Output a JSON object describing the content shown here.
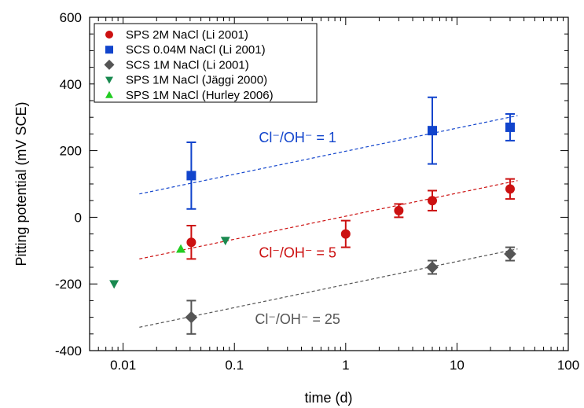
{
  "chart_data": {
    "type": "scatter",
    "xlabel": "time (d)",
    "ylabel": "Pitting potential (mV SCE)",
    "xscale": "log",
    "xlim": [
      0.005,
      100
    ],
    "ylim": [
      -400,
      600
    ],
    "x_ticks": [
      {
        "value": 0.01,
        "label": "0.01"
      },
      {
        "value": 0.1,
        "label": "0.1"
      },
      {
        "value": 1,
        "label": "1"
      },
      {
        "value": 10,
        "label": "10"
      },
      {
        "value": 100,
        "label": "100"
      }
    ],
    "y_ticks": [
      {
        "value": -400,
        "label": "-400"
      },
      {
        "value": -200,
        "label": "-200"
      },
      {
        "value": 0,
        "label": "0"
      },
      {
        "value": 200,
        "label": "200"
      },
      {
        "value": 400,
        "label": "400"
      },
      {
        "value": 600,
        "label": "600"
      }
    ],
    "grid": false,
    "legend_position": "top-left",
    "series": [
      {
        "name": "SPS 2M NaCl (Li 2001)",
        "marker": "circle",
        "color": "#cc1111",
        "points": [
          {
            "x": 0.041,
            "y": -75,
            "err": 50
          },
          {
            "x": 1,
            "y": -50,
            "err": 40
          },
          {
            "x": 3,
            "y": 20,
            "err": 20
          },
          {
            "x": 6,
            "y": 50,
            "err": 30
          },
          {
            "x": 30,
            "y": 85,
            "err": 30
          }
        ]
      },
      {
        "name": "SCS 0.04M NaCl (Li 2001)",
        "marker": "square",
        "color": "#1144cc",
        "points": [
          {
            "x": 0.041,
            "y": 125,
            "err": 100
          },
          {
            "x": 6,
            "y": 260,
            "err": 100
          },
          {
            "x": 30,
            "y": 270,
            "err": 40
          }
        ]
      },
      {
        "name": "SCS 1M NaCl (Li 2001)",
        "marker": "diamond",
        "color": "#555555",
        "points": [
          {
            "x": 0.041,
            "y": -300,
            "err": 50
          },
          {
            "x": 6,
            "y": -150,
            "err": 20
          },
          {
            "x": 30,
            "y": -110,
            "err": 20
          }
        ]
      },
      {
        "name": "SPS 1M NaCl (Jäggi 2000)",
        "marker": "triangle-down",
        "color": "#1a8a50",
        "points": [
          {
            "x": 0.0083,
            "y": -200
          },
          {
            "x": 0.083,
            "y": -70
          }
        ]
      },
      {
        "name": "SPS 1M NaCl (Hurley 2006)",
        "marker": "triangle-up",
        "color": "#22cc22",
        "points": [
          {
            "x": 0.033,
            "y": -95
          }
        ]
      }
    ],
    "trend_lines": [
      {
        "color": "#1144cc",
        "x": [
          0.014,
          35
        ],
        "y": [
          70,
          305
        ]
      },
      {
        "color": "#cc1111",
        "x": [
          0.014,
          35
        ],
        "y": [
          -125,
          110
        ]
      },
      {
        "color": "#555555",
        "x": [
          0.014,
          35
        ],
        "y": [
          -330,
          -95
        ]
      }
    ],
    "annotations": [
      {
        "text": "Cl⁻/OH⁻ = 1",
        "color": "#1144cc",
        "x": 0.37,
        "y": 225
      },
      {
        "text": "Cl⁻/OH⁻ = 5",
        "color": "#cc1111",
        "x": 0.37,
        "y": -120
      },
      {
        "text": "Cl⁻/OH⁻ = 25",
        "color": "#555555",
        "x": 0.37,
        "y": -320
      }
    ]
  }
}
